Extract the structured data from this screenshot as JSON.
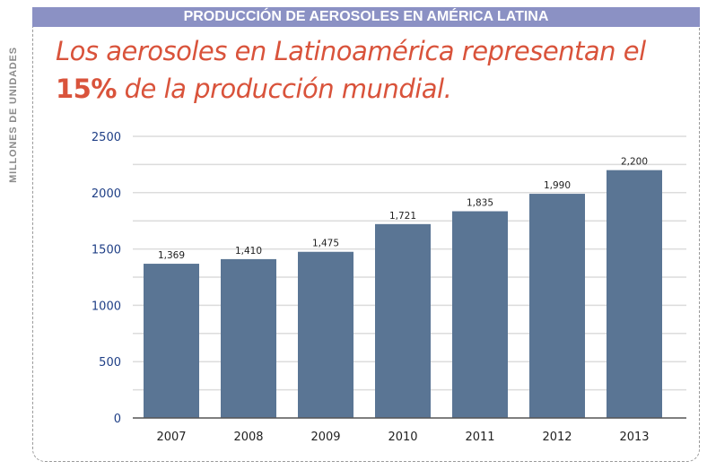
{
  "header": {
    "title": "PRODUCCIÓN DE AEROSOLES EN AMÉRICA LATINA"
  },
  "headline": {
    "line1": "Los aerosoles en Latinoamérica representan el",
    "highlight": "15%",
    "line2_rest": " de la producción mundial."
  },
  "colors": {
    "header_bg": "#8b91c4",
    "headline": "#d9533b",
    "bar": "#5a7594",
    "tick_text": "#1f3f86"
  },
  "chart_data": {
    "type": "bar",
    "title": "",
    "xlabel": "",
    "ylabel": "MILLONES DE UNIDADES",
    "categories": [
      "2007",
      "2008",
      "2009",
      "2010",
      "2011",
      "2012",
      "2013"
    ],
    "values": [
      1369,
      1410,
      1475,
      1721,
      1835,
      1990,
      2200
    ],
    "data_labels": [
      "1,369",
      "1,410",
      "1,475",
      "1,721",
      "1,835",
      "1,990",
      "2,200"
    ],
    "ylim": [
      0,
      2500
    ],
    "yticks": [
      "0",
      "500",
      "1000",
      "1500",
      "2000",
      "2500"
    ],
    "grid": true,
    "legend": "none"
  }
}
